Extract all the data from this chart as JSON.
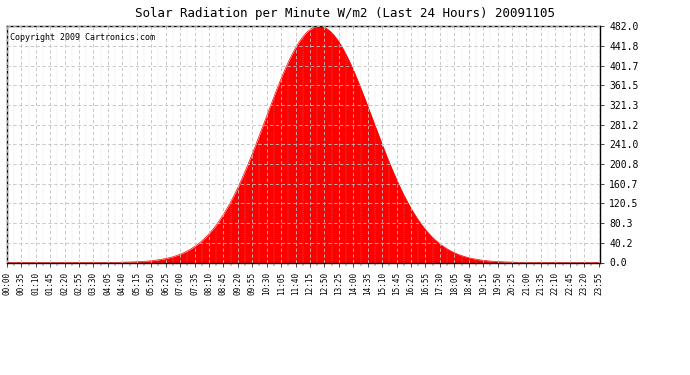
{
  "title": "Solar Radiation per Minute W/m2 (Last 24 Hours) 20091105",
  "copyright_text": "Copyright 2009 Cartronics.com",
  "fill_color": "#ff0000",
  "line_color": "#ff0000",
  "background_color": "#ffffff",
  "grid_color": "#c0c0c0",
  "y_tick_labels": [
    "0.0",
    "40.2",
    "80.3",
    "120.5",
    "160.7",
    "200.8",
    "241.0",
    "281.2",
    "321.3",
    "361.5",
    "401.7",
    "441.8",
    "482.0"
  ],
  "y_tick_values": [
    0.0,
    40.2,
    80.3,
    120.5,
    160.7,
    200.8,
    241.0,
    281.2,
    321.3,
    361.5,
    401.7,
    441.8,
    482.0
  ],
  "y_max": 482.0,
  "y_min": 0.0,
  "peak_value": 482.0,
  "peak_time_minutes": 757,
  "rise_start_minutes": 385,
  "set_end_minutes": 985,
  "total_minutes": 1440,
  "sigma_factor": 130,
  "x_tick_labels": [
    "00:00",
    "00:35",
    "01:10",
    "01:45",
    "02:20",
    "02:55",
    "03:30",
    "04:05",
    "04:40",
    "05:15",
    "05:50",
    "06:25",
    "07:00",
    "07:35",
    "08:10",
    "08:45",
    "09:20",
    "09:55",
    "10:30",
    "11:05",
    "11:40",
    "12:15",
    "12:50",
    "13:25",
    "14:00",
    "14:35",
    "15:10",
    "15:45",
    "16:20",
    "16:55",
    "17:30",
    "18:05",
    "18:40",
    "19:15",
    "19:50",
    "20:25",
    "21:00",
    "21:35",
    "22:10",
    "22:45",
    "23:20",
    "23:55"
  ],
  "x_tick_positions": [
    0,
    35,
    70,
    105,
    140,
    175,
    210,
    245,
    280,
    315,
    350,
    385,
    420,
    455,
    490,
    525,
    560,
    595,
    630,
    665,
    700,
    735,
    770,
    805,
    840,
    875,
    910,
    945,
    980,
    1015,
    1050,
    1085,
    1120,
    1155,
    1190,
    1225,
    1260,
    1295,
    1330,
    1365,
    1400,
    1435
  ]
}
